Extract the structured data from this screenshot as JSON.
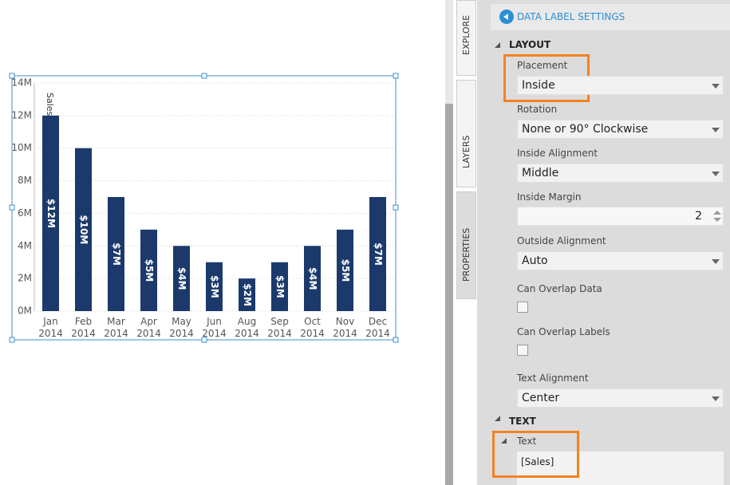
{
  "chart": {
    "type": "bar",
    "y_label": "Sales",
    "categories": [
      "Jan 2014",
      "Feb 2014",
      "Mar 2014",
      "Apr 2014",
      "May 2014",
      "Jun 2014",
      "Aug 2014",
      "Sep 2014",
      "Oct 2014",
      "Nov 2014",
      "Dec 2014"
    ],
    "values": [
      12000000,
      10000000,
      7000000,
      5000000,
      4000000,
      3000000,
      2000000,
      3000000,
      4000000,
      5000000,
      7000000
    ],
    "value_labels": [
      "$12M",
      "$10M",
      "$7M",
      "$5M",
      "$4M",
      "$3M",
      "$2M",
      "$3M",
      "$4M",
      "$5M",
      "$7M"
    ],
    "color": "#1b3a6b",
    "ylim": [
      0,
      14000000
    ],
    "yticks": [
      {
        "value": 0,
        "label": "0M"
      },
      {
        "value": 2000000,
        "label": "2M"
      },
      {
        "value": 4000000,
        "label": "4M"
      },
      {
        "value": 6000000,
        "label": "6M"
      },
      {
        "value": 8000000,
        "label": "8M"
      },
      {
        "value": 10000000,
        "label": "10M"
      },
      {
        "value": 12000000,
        "label": "12M"
      },
      {
        "value": 14000000,
        "label": "14M"
      }
    ],
    "grid": true
  },
  "tabs": [
    "EXPLORE",
    "LAYERS",
    "PROPERTIES"
  ],
  "panel": {
    "header": "DATA LABEL SETTINGS",
    "layout": {
      "title": "LAYOUT",
      "fields": [
        {
          "label": "Placement",
          "value": "Inside"
        },
        {
          "label": "Rotation",
          "value": "None or 90° Clockwise"
        },
        {
          "label": "Inside Alignment",
          "value": "Middle"
        },
        {
          "label": "Inside Margin",
          "value": 2
        },
        {
          "label": "Outside Alignment",
          "value": "Auto"
        },
        {
          "label": "Can Overlap Data"
        },
        {
          "label": "Can Overlap Labels"
        },
        {
          "label": "Text Alignment",
          "value": "Center"
        }
      ]
    },
    "text": {
      "title": "TEXT",
      "subtitle": "Text",
      "value": "[Sales]"
    }
  }
}
